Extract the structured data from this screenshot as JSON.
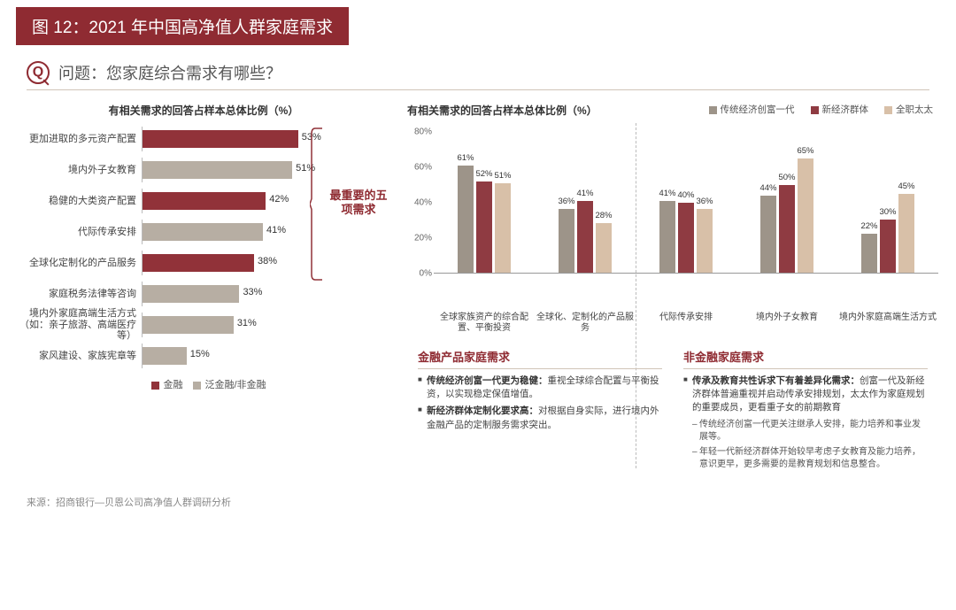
{
  "header": {
    "title": "图 12：2021 年中国高净值人群家庭需求"
  },
  "question": {
    "label": "问题：",
    "text": "您家庭综合需求有哪些？"
  },
  "colors": {
    "primary": "#913239",
    "secondary_bar": "#b7aea3",
    "group_a": "#9d9489",
    "group_b": "#8f3b42",
    "group_c": "#d8c0a8",
    "text_muted": "#888888",
    "divider": "#bbbbbb"
  },
  "left_chart": {
    "title": "有相关需求的回答占样本总体比例（%）",
    "x_max": 60,
    "bars": [
      {
        "label": "更加进取的多元资产配置",
        "value": 53,
        "color_key": "primary",
        "top5": true
      },
      {
        "label": "境内外子女教育",
        "value": 51,
        "color_key": "secondary_bar",
        "top5": true
      },
      {
        "label": "稳健的大类资产配置",
        "value": 42,
        "color_key": "primary",
        "top5": true
      },
      {
        "label": "代际传承安排",
        "value": 41,
        "color_key": "secondary_bar",
        "top5": true
      },
      {
        "label": "全球化定制化的产品服务",
        "value": 38,
        "color_key": "primary",
        "top5": true
      },
      {
        "label": "家庭税务法律等咨询",
        "value": 33,
        "color_key": "secondary_bar",
        "top5": false
      },
      {
        "label": "境内外家庭高端生活方式（如：亲子旅游、高端医疗等）",
        "value": 31,
        "color_key": "secondary_bar",
        "top5": false
      },
      {
        "label": "家风建设、家族宪章等",
        "value": 15,
        "color_key": "secondary_bar",
        "top5": false
      }
    ],
    "bracket_label": "最重要的五项需求",
    "legend": [
      {
        "label": "金融",
        "color_key": "primary"
      },
      {
        "label": "泛金融/非金融",
        "color_key": "secondary_bar"
      }
    ]
  },
  "right_chart": {
    "title": "有相关需求的回答占样本总体比例（%）",
    "y_max": 80,
    "y_ticks": [
      0,
      20,
      40,
      60,
      80
    ],
    "legend": [
      {
        "label": "传统经济创富一代",
        "color_key": "group_a"
      },
      {
        "label": "新经济群体",
        "color_key": "group_b"
      },
      {
        "label": "全职太太",
        "color_key": "group_c"
      }
    ],
    "sections": [
      {
        "clusters": [
          {
            "label": "全球家族资产的综合配置、平衡投资",
            "values": [
              61,
              52,
              51
            ]
          },
          {
            "label": "全球化、定制化的产品服务",
            "values": [
              36,
              41,
              28
            ]
          }
        ]
      },
      {
        "clusters": [
          {
            "label": "代际传承安排",
            "values": [
              41,
              40,
              36
            ]
          },
          {
            "label": "境内外子女教育",
            "values": [
              44,
              50,
              65
            ]
          },
          {
            "label": "境内外家庭高端生活方式",
            "values": [
              22,
              30,
              45
            ]
          }
        ]
      }
    ]
  },
  "text_blocks": {
    "left": {
      "title": "金融产品家庭需求",
      "bullets": [
        {
          "bold": "传统经济创富一代更为稳健：",
          "rest": "重视全球综合配置与平衡投资，以实现稳定保值增值。"
        },
        {
          "bold": "新经济群体定制化要求高：",
          "rest": "对根据自身实际，进行境内外金融产品的定制服务需求突出。"
        }
      ],
      "subs": []
    },
    "right": {
      "title": "非金融家庭需求",
      "bullets": [
        {
          "bold": "传承及教育共性诉求下有着差异化需求：",
          "rest": "创富一代及新经济群体普遍重视并启动传承安排规划，太太作为家庭规划的重要成员，更看重子女的前期教育"
        }
      ],
      "subs": [
        "传统经济创富一代更关注继承人安排，能力培养和事业发展等。",
        "年轻一代新经济群体开始较早考虑子女教育及能力培养，意识更早，更多需要的是教育规划和信息整合。"
      ]
    }
  },
  "source": "来源：招商银行—贝恩公司高净值人群调研分析"
}
